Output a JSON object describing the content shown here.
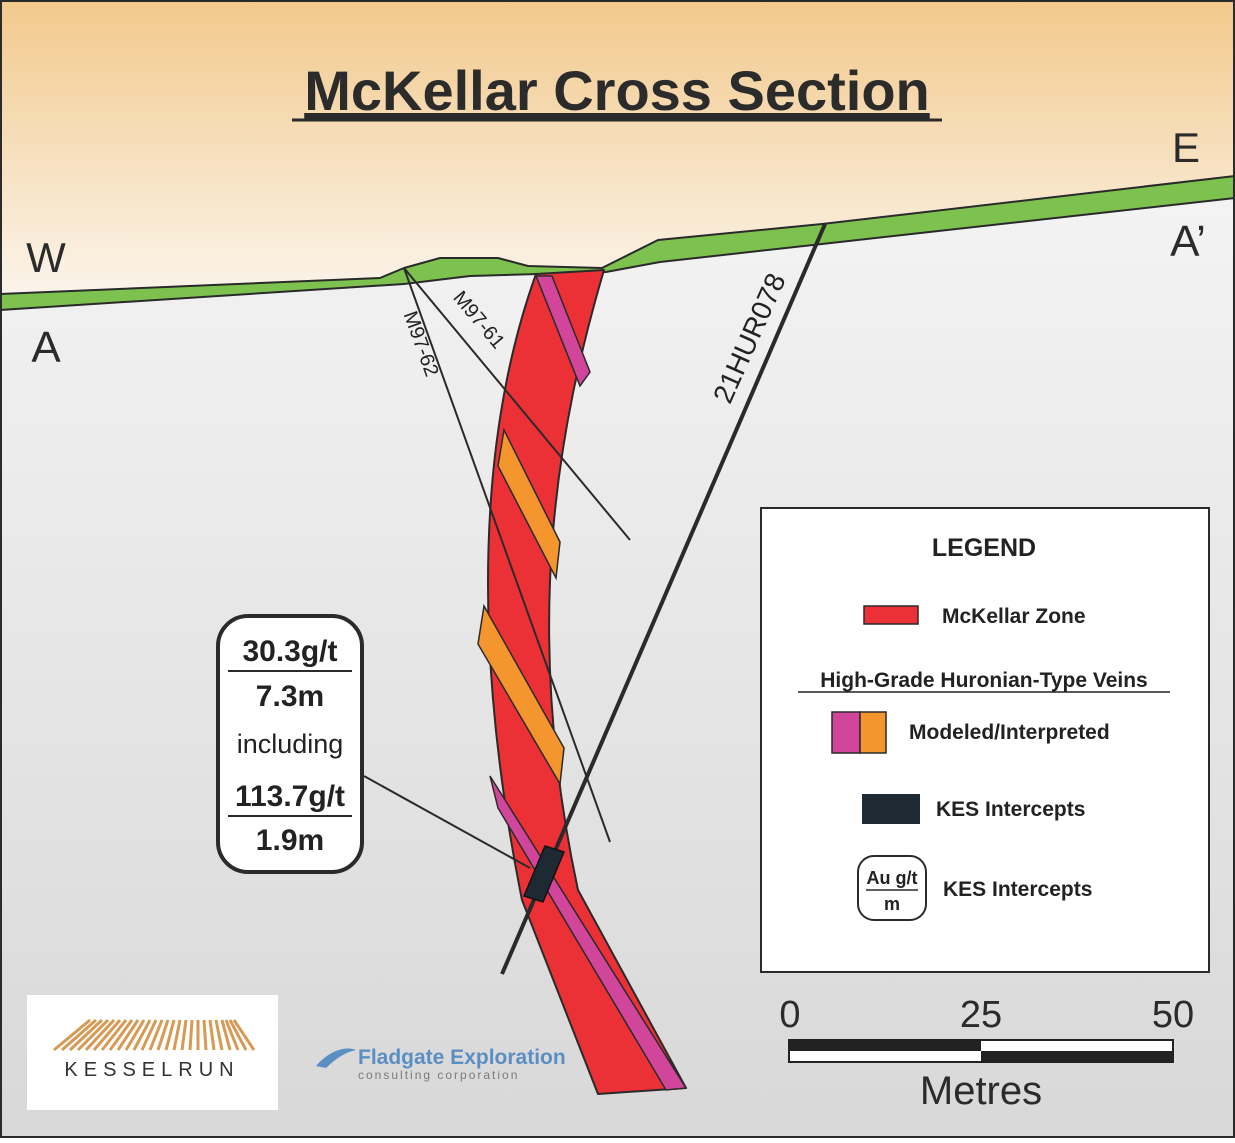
{
  "title": "McKellar Cross Section",
  "directions": {
    "west": "W",
    "east": "E",
    "section_start": "A",
    "section_end": "A’"
  },
  "drill_holes": [
    "M97-62",
    "M97-61",
    "21HUR078"
  ],
  "intercept_box": {
    "grade_1": "30.3g/t",
    "width_1": "7.3m",
    "including": "including",
    "grade_2": "113.7g/t",
    "width_2": "1.9m"
  },
  "legend": {
    "heading": "LEGEND",
    "zone_label": "McKellar Zone",
    "veins_heading": "High-Grade Huronian-Type Veins",
    "modeled_label": "Modeled/Interpreted",
    "kes_label": "KES Intercepts",
    "kes_label_2": "KES Intercepts",
    "icon_top": "Au g/t",
    "icon_bottom": "m"
  },
  "scale_bar": {
    "ticks": [
      "0",
      "25",
      "50"
    ],
    "unit": "Metres"
  },
  "logos": {
    "kesselrun": "KESSELRUN",
    "fladgate_name": "Fladgate Exploration",
    "fladgate_sub": "consulting corporation"
  },
  "colors": {
    "zone_red": "#ec3136",
    "vein_magenta": "#d1469a",
    "vein_orange": "#f4952e",
    "intercept_dark": "#1e2a33",
    "overburden_green": "#7dc24e",
    "sky_tan": "#f4cf96"
  }
}
